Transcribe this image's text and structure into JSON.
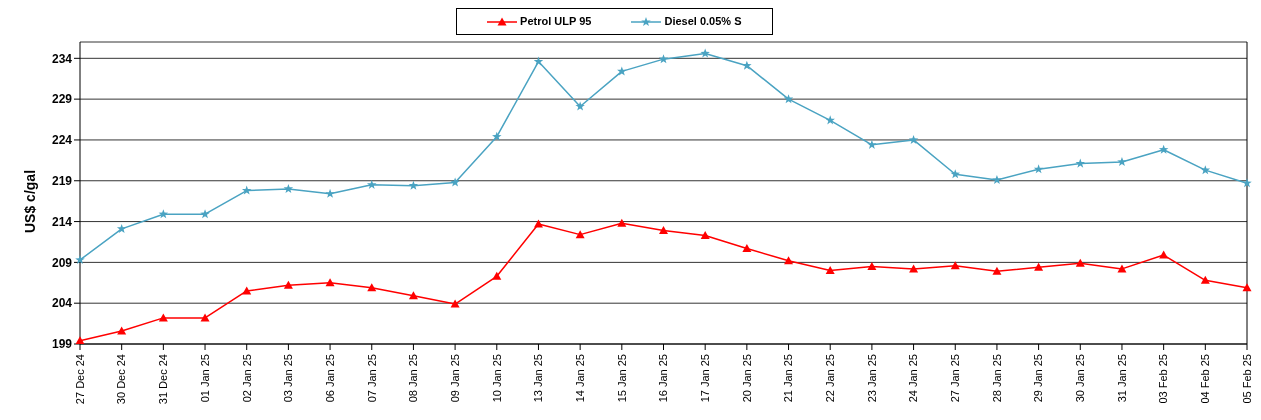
{
  "chart_data": {
    "type": "line",
    "ylabel": "US$ c/gal",
    "categories": [
      "27 Dec 24",
      "30 Dec 24",
      "31 Dec 24",
      "01 Jan 25",
      "02 Jan 25",
      "03 Jan 25",
      "06 Jan 25",
      "07 Jan 25",
      "08 Jan 25",
      "09 Jan 25",
      "10 Jan 25",
      "13 Jan 25",
      "14 Jan 25",
      "15 Jan 25",
      "16 Jan 25",
      "17 Jan 25",
      "20 Jan 25",
      "21 Jan 25",
      "22 Jan 25",
      "23 Jan 25",
      "24 Jan 25",
      "27 Jan 25",
      "28 Jan 25",
      "29 Jan 25",
      "30 Jan 25",
      "31 Jan 25",
      "03 Feb 25",
      "04 Feb 25",
      "05 Feb 25"
    ],
    "series": [
      {
        "name": "Petrol ULP 95",
        "color": "#ff0000",
        "marker": "triangle",
        "values": [
          199.4,
          200.6,
          202.2,
          202.2,
          205.5,
          206.2,
          206.5,
          205.9,
          204.9,
          203.9,
          207.3,
          213.7,
          212.4,
          213.8,
          212.9,
          212.3,
          210.7,
          209.2,
          208.0,
          208.5,
          208.2,
          208.6,
          207.9,
          208.4,
          208.9,
          208.2,
          209.9,
          206.8,
          205.9
        ]
      },
      {
        "name": "Diesel 0.05% S",
        "color": "#4aa3c2",
        "marker": "star",
        "values": [
          209.3,
          213.1,
          214.9,
          214.9,
          217.8,
          218.0,
          217.4,
          218.5,
          218.4,
          218.8,
          224.4,
          233.6,
          228.1,
          232.4,
          233.9,
          234.6,
          233.1,
          229.0,
          226.4,
          223.4,
          224.0,
          219.8,
          219.1,
          220.4,
          221.1,
          221.3,
          222.8,
          220.3,
          218.7
        ]
      }
    ],
    "ylim": [
      199,
      236
    ],
    "yticks": [
      199,
      204,
      209,
      214,
      219,
      224,
      229,
      234
    ],
    "grid": "y",
    "legend": "top"
  }
}
